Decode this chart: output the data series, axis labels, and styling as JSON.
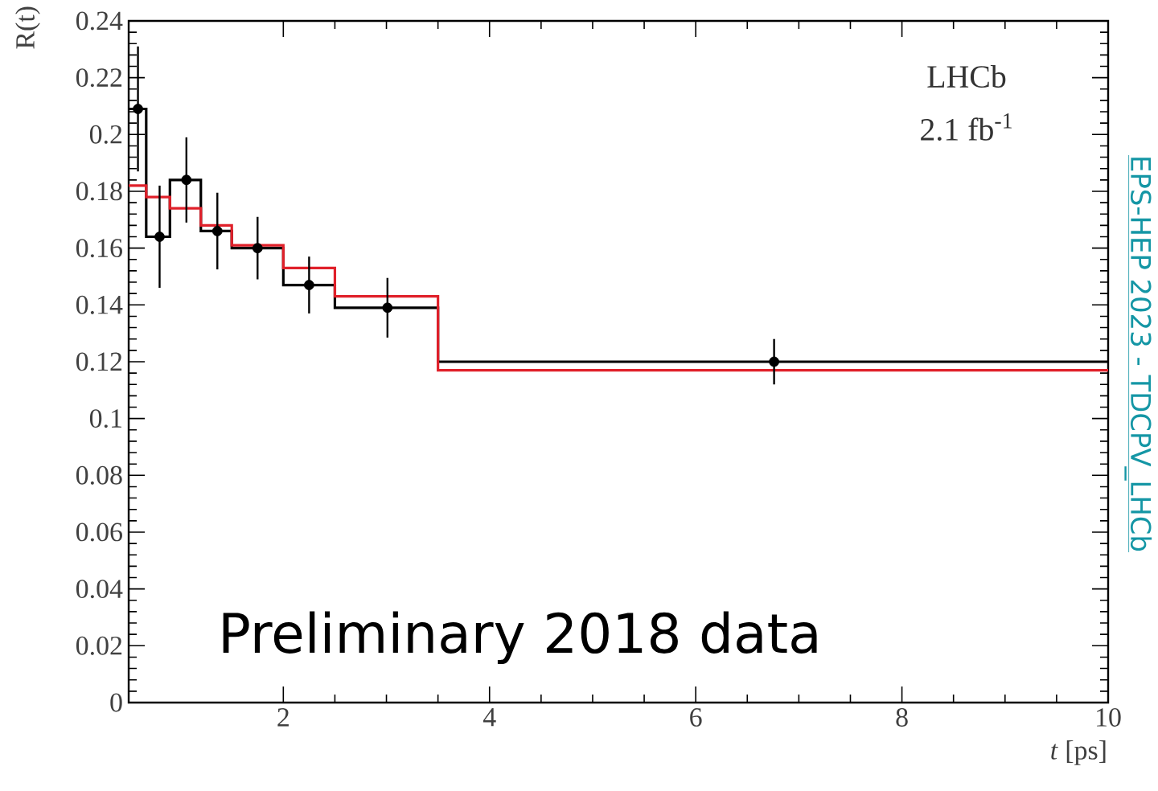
{
  "chart_data": {
    "type": "step",
    "xlabel": "*t* [ps]",
    "ylabel": "R(t)",
    "xlim": [
      0.5,
      10
    ],
    "ylim": [
      0,
      0.24
    ],
    "xticks": [
      2,
      4,
      6,
      8,
      10
    ],
    "yticks": [
      0,
      0.02,
      0.04,
      0.06,
      0.08,
      0.1,
      0.12,
      0.14,
      0.16,
      0.18,
      0.2,
      0.22,
      0.24
    ],
    "grid": false,
    "series": [
      {
        "color": "#000000",
        "marker": "none",
        "x": [
          0.5,
          0.67,
          0.9,
          1.2,
          1.5,
          2.0,
          2.5,
          3.5,
          10
        ],
        "values": [
          0.209,
          0.164,
          0.184,
          0.166,
          0.16,
          0.147,
          0.139,
          0.12,
          0.12
        ]
      },
      {
        "color": "#e0202a",
        "marker": "none",
        "x": [
          0.5,
          0.67,
          0.9,
          1.2,
          1.5,
          2.0,
          2.5,
          3.5,
          10
        ],
        "values": [
          0.182,
          0.178,
          0.174,
          0.168,
          0.161,
          0.153,
          0.143,
          0.117,
          0.117
        ]
      },
      {
        "type": "scatter",
        "color": "#000000",
        "marker": "circle",
        "x": [
          0.59,
          0.8,
          1.06,
          1.36,
          1.75,
          2.25,
          3.01,
          6.76
        ],
        "values": [
          0.209,
          0.164,
          0.184,
          0.166,
          0.16,
          0.147,
          0.139,
          0.12
        ],
        "errors": [
          0.022,
          0.018,
          0.015,
          0.0135,
          0.011,
          0.01,
          0.0105,
          0.008
        ]
      }
    ],
    "annotations": [
      "LHCb",
      "2.1 fb$^{-1}$",
      "Preliminary 2018 data",
      "EPS-HEP 2023 - TDCPV_LHCb"
    ]
  }
}
